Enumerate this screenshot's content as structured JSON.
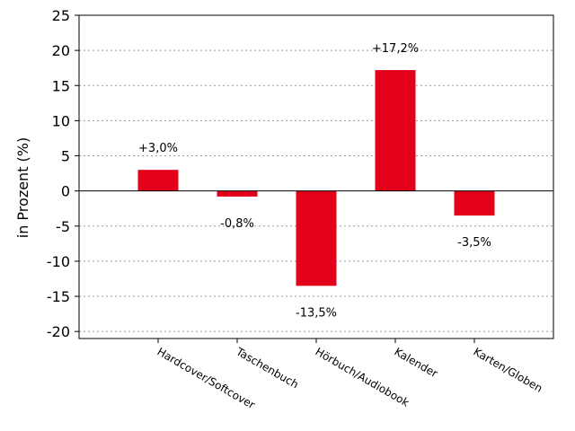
{
  "chart_data": {
    "type": "bar",
    "title": "",
    "xlabel": "",
    "ylabel": "in Prozent (%)",
    "categories": [
      "Hardcover/Softcover",
      "Taschenbuch",
      "Hörbuch/Audiobook",
      "Kalender",
      "Karten/Globen"
    ],
    "values": [
      3.0,
      -0.8,
      -13.5,
      17.2,
      -3.5
    ],
    "data_labels": [
      "+3,0%",
      "-0,8%",
      "-13,5%",
      "+17,2%",
      "-3,5%"
    ],
    "ylim": [
      -21,
      25
    ],
    "yticks": [
      25,
      20,
      15,
      10,
      5,
      0,
      -5,
      -10,
      -15,
      -20
    ],
    "grid": "horizontal dotted",
    "bar_color": "#e2001a"
  }
}
